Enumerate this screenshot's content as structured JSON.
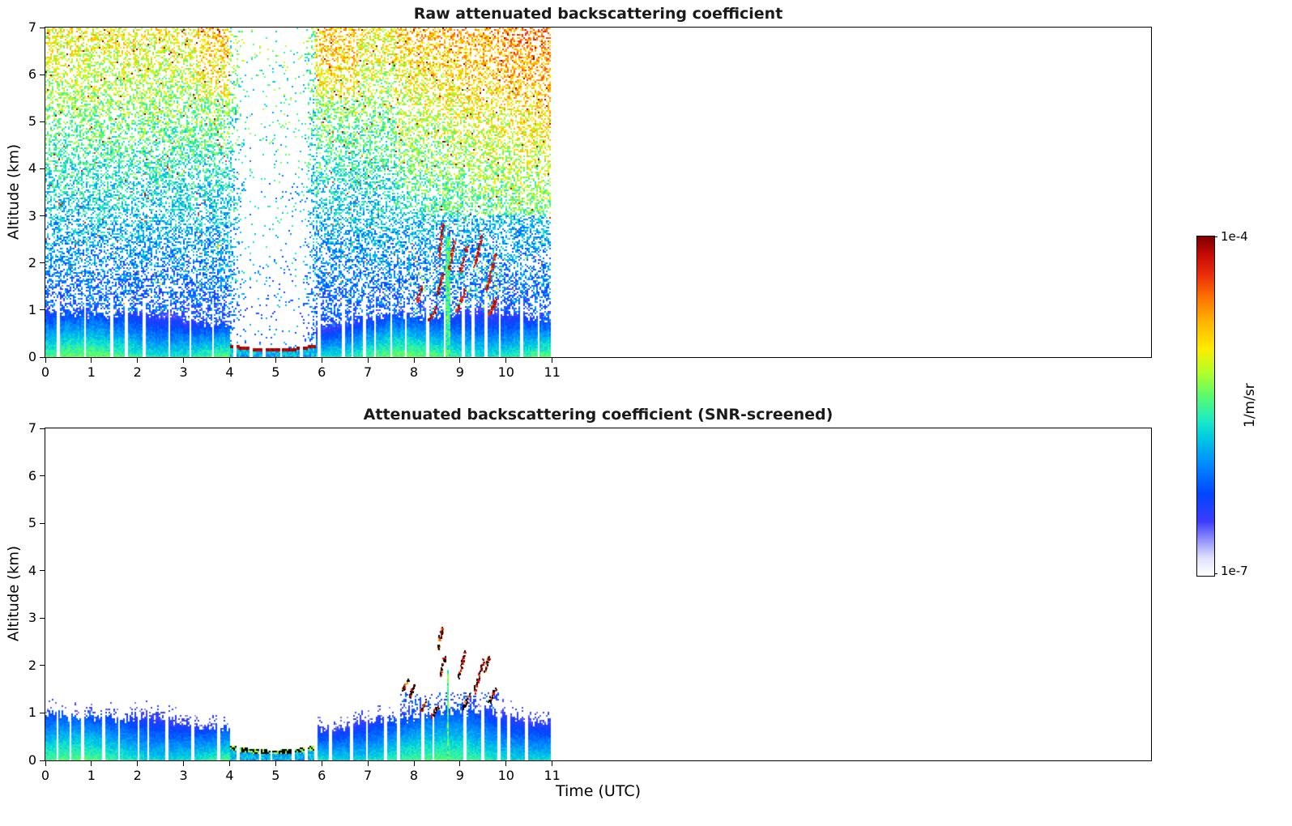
{
  "colorbar": {
    "max_label": "1e-4",
    "min_label": "1e-7",
    "unit_label": "1/m/sr",
    "stops": [
      [
        0.0,
        [
          255,
          255,
          255
        ]
      ],
      [
        0.05,
        [
          226,
          226,
          252
        ]
      ],
      [
        0.1,
        [
          152,
          152,
          252
        ]
      ],
      [
        0.16,
        [
          60,
          60,
          255
        ]
      ],
      [
        0.24,
        [
          0,
          70,
          255
        ]
      ],
      [
        0.33,
        [
          0,
          140,
          255
        ]
      ],
      [
        0.41,
        [
          0,
          205,
          225
        ]
      ],
      [
        0.46,
        [
          30,
          235,
          195
        ]
      ],
      [
        0.53,
        [
          90,
          250,
          110
        ]
      ],
      [
        0.6,
        [
          180,
          255,
          40
        ]
      ],
      [
        0.67,
        [
          255,
          235,
          0
        ]
      ],
      [
        0.75,
        [
          255,
          180,
          0
        ]
      ],
      [
        0.82,
        [
          255,
          115,
          0
        ]
      ],
      [
        0.89,
        [
          235,
          45,
          10
        ]
      ],
      [
        0.95,
        [
          195,
          10,
          5
        ]
      ],
      [
        1.0,
        [
          127,
          0,
          0
        ]
      ]
    ]
  },
  "chart_data": [
    {
      "type": "heatmap",
      "variant": "raw",
      "title": "Raw attenuated backscattering coefficient",
      "xlabel": "",
      "ylabel": "Altitude (km)",
      "xlim": [
        0,
        24
      ],
      "ylim": [
        0,
        7
      ],
      "xticks": [
        0,
        1,
        2,
        3,
        4,
        5,
        6,
        7,
        8,
        9,
        10,
        11
      ],
      "yticks": [
        0,
        1,
        2,
        3,
        4,
        5,
        6,
        7
      ],
      "data_time_extent_utc": [
        0,
        11
      ],
      "colorscale_min": "1e-7",
      "colorscale_max": "1e-4",
      "colorscale_units": "1/m/sr",
      "grid": false,
      "features": {
        "boundary_layer_mean_top_km": 0.85,
        "attenuation_interval_utc": [
          4.02,
          5.88
        ],
        "fog_cloud_base_km": 0.12,
        "precip_column_utc": [
          8.7,
          8.78
        ],
        "precip_column_top_km": 2.55,
        "cloud_fragment_segments": [
          [
            8.3,
            0.8,
            8.5,
            1.1
          ],
          [
            8.5,
            1.35,
            8.62,
            1.78
          ],
          [
            8.52,
            2.1,
            8.62,
            2.85
          ],
          [
            8.75,
            1.9,
            8.87,
            2.5
          ],
          [
            9.0,
            1.85,
            9.15,
            2.4
          ],
          [
            9.3,
            1.95,
            9.46,
            2.6
          ],
          [
            9.55,
            1.4,
            9.76,
            2.2
          ],
          [
            8.9,
            1.0,
            9.1,
            1.4
          ],
          [
            9.6,
            0.9,
            9.8,
            1.3
          ],
          [
            8.05,
            1.2,
            8.15,
            1.5
          ]
        ],
        "noise_full_height": true
      }
    },
    {
      "type": "heatmap",
      "variant": "screened",
      "title": "Attenuated backscattering coefficient (SNR-screened)",
      "xlabel": "Time (UTC)",
      "ylabel": "Altitude (km)",
      "xlim": [
        0,
        24
      ],
      "ylim": [
        0,
        7
      ],
      "xticks": [
        0,
        1,
        2,
        3,
        4,
        5,
        6,
        7,
        8,
        9,
        10,
        11
      ],
      "yticks": [
        0,
        1,
        2,
        3,
        4,
        5,
        6,
        7
      ],
      "data_time_extent_utc": [
        0,
        11
      ],
      "colorscale_min": "1e-7",
      "colorscale_max": "1e-4",
      "colorscale_units": "1/m/sr",
      "grid": false,
      "features": {
        "boundary_layer_mean_top_km": 0.88,
        "attenuation_interval_utc": [
          4.02,
          5.88
        ],
        "fog_cloud_base_km": 0.13,
        "precip_column_utc": [
          8.71,
          8.77
        ],
        "precip_column_top_km": 1.9,
        "cloud_fragment_segments": [
          [
            7.9,
            1.35,
            8.0,
            1.62
          ],
          [
            8.15,
            1.05,
            8.25,
            1.3
          ],
          [
            8.5,
            2.35,
            8.6,
            2.8
          ],
          [
            8.55,
            1.8,
            8.66,
            2.2
          ],
          [
            8.95,
            1.75,
            9.1,
            2.3
          ],
          [
            9.3,
            1.45,
            9.5,
            2.15
          ],
          [
            9.52,
            1.85,
            9.62,
            2.25
          ],
          [
            9.05,
            1.1,
            9.2,
            1.42
          ],
          [
            8.35,
            0.9,
            8.5,
            1.15
          ],
          [
            9.6,
            1.2,
            9.75,
            1.5
          ],
          [
            7.75,
            1.5,
            7.85,
            1.72
          ]
        ],
        "noise_full_height": false
      }
    }
  ]
}
